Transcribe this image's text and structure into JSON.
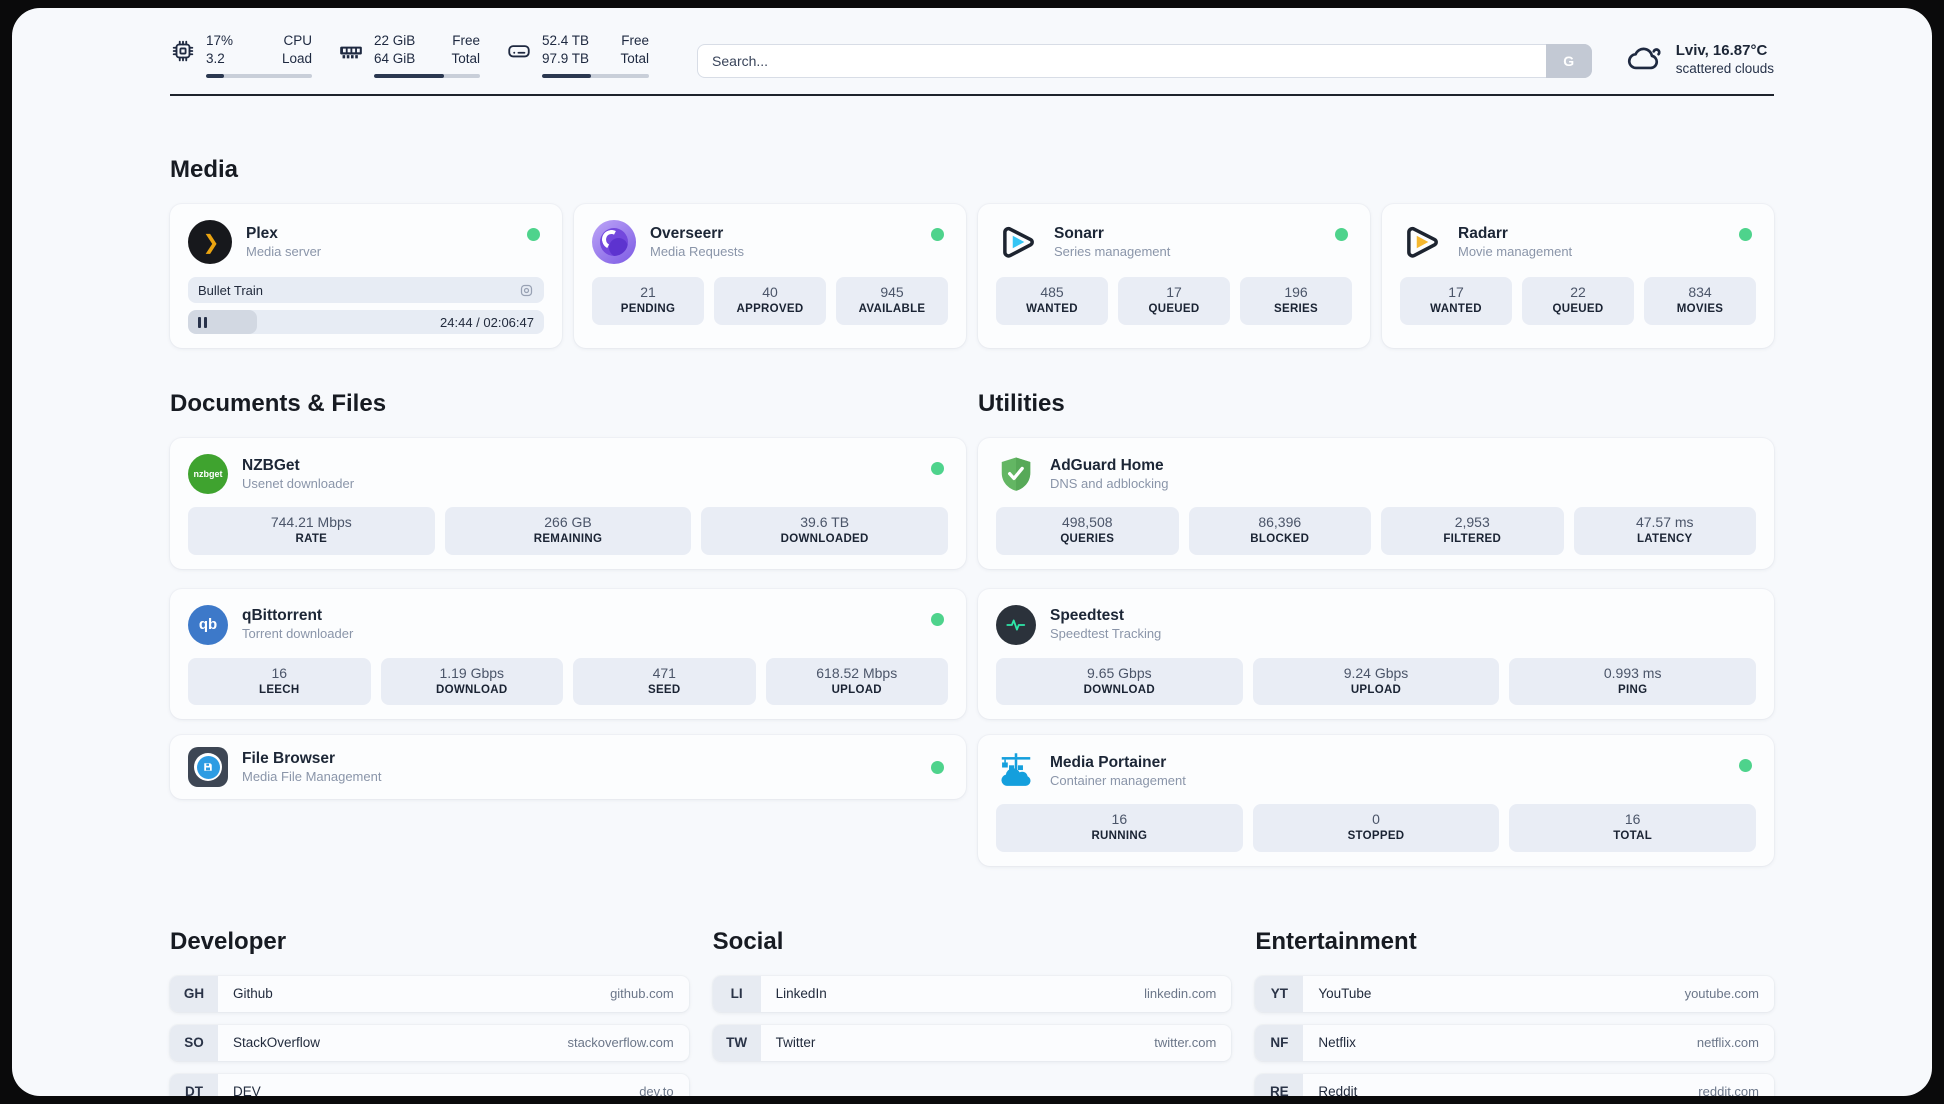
{
  "header": {
    "system_widgets": [
      {
        "icon": "cpu-icon",
        "value_top": "17%",
        "value_bottom": "3.2",
        "label_top": "CPU",
        "label_bottom": "Load",
        "progress": "17%"
      },
      {
        "icon": "ram-icon",
        "value_top": "22 GiB",
        "value_bottom": "64 GiB",
        "label_top": "Free",
        "label_bottom": "Total",
        "progress": "66%"
      },
      {
        "icon": "disk-icon",
        "value_top": "52.4 TB",
        "value_bottom": "97.9 TB",
        "label_top": "Free",
        "label_bottom": "Total",
        "progress": "46%"
      }
    ],
    "search": {
      "placeholder": "Search...",
      "button_label": "G"
    },
    "weather": {
      "location_temp": "Lviv, 16.87°C",
      "condition": "scattered clouds"
    }
  },
  "sections": {
    "media": "Media",
    "documents": "Documents & Files",
    "utilities": "Utilities",
    "developer": "Developer",
    "social": "Social",
    "entertainment": "Entertainment"
  },
  "apps": {
    "plex": {
      "name": "Plex",
      "description": "Media server",
      "status": "online",
      "now_playing": {
        "title": "Bullet Train",
        "time_display": "24:44 / 02:06:47",
        "progress": "19.5%"
      }
    },
    "overseerr": {
      "name": "Overseerr",
      "description": "Media Requests",
      "status": "online",
      "stats": [
        {
          "value": "21",
          "label": "PENDING"
        },
        {
          "value": "40",
          "label": "APPROVED"
        },
        {
          "value": "945",
          "label": "AVAILABLE"
        }
      ]
    },
    "sonarr": {
      "name": "Sonarr",
      "description": "Series management",
      "status": "online",
      "stats": [
        {
          "value": "485",
          "label": "WANTED"
        },
        {
          "value": "17",
          "label": "QUEUED"
        },
        {
          "value": "196",
          "label": "SERIES"
        }
      ]
    },
    "radarr": {
      "name": "Radarr",
      "description": "Movie management",
      "status": "online",
      "stats": [
        {
          "value": "17",
          "label": "WANTED"
        },
        {
          "value": "22",
          "label": "QUEUED"
        },
        {
          "value": "834",
          "label": "MOVIES"
        }
      ]
    },
    "nzbget": {
      "name": "NZBGet",
      "description": "Usenet downloader",
      "status": "online",
      "icon_text": "nzbget",
      "stats": [
        {
          "value": "744.21 Mbps",
          "label": "RATE"
        },
        {
          "value": "266 GB",
          "label": "REMAINING"
        },
        {
          "value": "39.6 TB",
          "label": "DOWNLOADED"
        }
      ]
    },
    "qbittorrent": {
      "name": "qBittorrent",
      "description": "Torrent downloader",
      "status": "online",
      "icon_text": "qb",
      "stats": [
        {
          "value": "16",
          "label": "LEECH"
        },
        {
          "value": "1.19 Gbps",
          "label": "DOWNLOAD"
        },
        {
          "value": "471",
          "label": "SEED"
        },
        {
          "value": "618.52 Mbps",
          "label": "UPLOAD"
        }
      ]
    },
    "filebrowser": {
      "name": "File Browser",
      "description": "Media File Management",
      "status": "online"
    },
    "adguard": {
      "name": "AdGuard Home",
      "description": "DNS and adblocking",
      "stats": [
        {
          "value": "498,508",
          "label": "QUERIES"
        },
        {
          "value": "86,396",
          "label": "BLOCKED"
        },
        {
          "value": "2,953",
          "label": "FILTERED"
        },
        {
          "value": "47.57 ms",
          "label": "LATENCY"
        }
      ]
    },
    "speedtest": {
      "name": "Speedtest",
      "description": "Speedtest Tracking",
      "stats": [
        {
          "value": "9.65 Gbps",
          "label": "DOWNLOAD"
        },
        {
          "value": "9.24 Gbps",
          "label": "UPLOAD"
        },
        {
          "value": "0.993 ms",
          "label": "PING"
        }
      ]
    },
    "portainer": {
      "name": "Media Portainer",
      "description": "Container management",
      "status": "online",
      "stats": [
        {
          "value": "16",
          "label": "RUNNING"
        },
        {
          "value": "0",
          "label": "STOPPED"
        },
        {
          "value": "16",
          "label": "TOTAL"
        }
      ]
    }
  },
  "links": {
    "developer": [
      {
        "abbr": "GH",
        "name": "Github",
        "url": "github.com"
      },
      {
        "abbr": "SO",
        "name": "StackOverflow",
        "url": "stackoverflow.com"
      },
      {
        "abbr": "DT",
        "name": "DEV",
        "url": "dev.to"
      }
    ],
    "social": [
      {
        "abbr": "LI",
        "name": "LinkedIn",
        "url": "linkedin.com"
      },
      {
        "abbr": "TW",
        "name": "Twitter",
        "url": "twitter.com"
      }
    ],
    "entertainment": [
      {
        "abbr": "YT",
        "name": "YouTube",
        "url": "youtube.com"
      },
      {
        "abbr": "NF",
        "name": "Netflix",
        "url": "netflix.com"
      },
      {
        "abbr": "RE",
        "name": "Reddit",
        "url": "reddit.com"
      }
    ]
  },
  "colors": {
    "status_online": "#4ed38c",
    "accent_navy": "#2b3850",
    "plex_yellow": "#eba410",
    "sonarr_cyan": "#35c5f4",
    "radarr_yellow": "#f5b72e",
    "nzbget_green": "#3fa32f",
    "qbittorrent_blue": "#3d79c9",
    "adguard_green": "#63b663",
    "speedtest_green": "#2ee6a8",
    "portainer_blue": "#149fdd"
  }
}
